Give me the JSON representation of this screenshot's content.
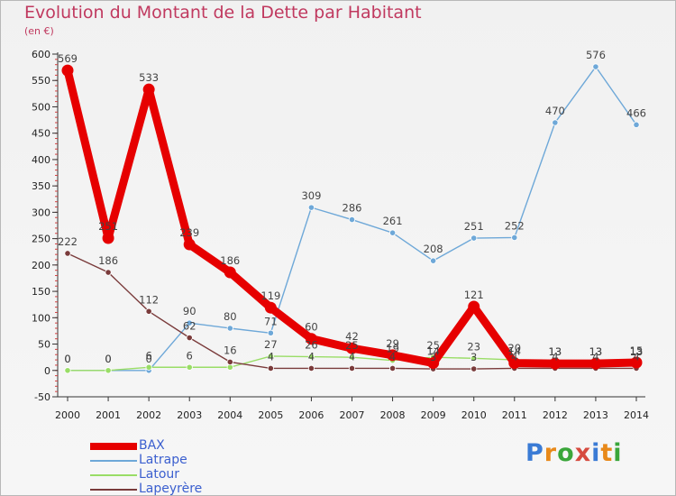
{
  "page": {
    "title": "Evolution du Montant de la Dette par Habitant",
    "subtitle": "(en €)"
  },
  "brand": {
    "letters": [
      "P",
      "r",
      "o",
      "x",
      "i",
      "t",
      "i"
    ],
    "colors": [
      "#3a7bd5",
      "#e8891a",
      "#3aa63a",
      "#d64b3f",
      "#3a7bd5",
      "#e8891a",
      "#3aa63a"
    ]
  },
  "chart_data": {
    "type": "line",
    "title": "Evolution du Montant de la Dette par Habitant",
    "subtitle": "(en €)",
    "xlabel": "",
    "ylabel": "",
    "x": [
      "2000",
      "2001",
      "2002",
      "2003",
      "2004",
      "2005",
      "2006",
      "2007",
      "2008",
      "2009",
      "2010",
      "2011",
      "2012",
      "2013",
      "2014"
    ],
    "ylim": [
      -50,
      600
    ],
    "yticks": [
      -50,
      0,
      50,
      100,
      150,
      200,
      250,
      300,
      350,
      400,
      450,
      500,
      550,
      600
    ],
    "grid": false,
    "legend_position": "bottom-left",
    "series": [
      {
        "name": "BAX",
        "color": "#e60000",
        "weight": "heavy",
        "values": [
          569,
          251,
          533,
          239,
          186,
          119,
          60,
          42,
          29,
          14,
          121,
          14,
          13,
          13,
          15
        ],
        "labels": [
          "569",
          "251",
          "533",
          "239",
          "186",
          "119",
          "60",
          "42",
          "29",
          "14",
          "121",
          "14",
          "13",
          "13",
          "15"
        ]
      },
      {
        "name": "Latrape",
        "color": "#6ea8d8",
        "weight": "thin",
        "values": [
          0,
          0,
          0,
          90,
          80,
          71,
          309,
          286,
          261,
          208,
          251,
          252,
          470,
          576,
          466
        ],
        "labels": [
          "0",
          "0",
          "0",
          "90",
          "80",
          "71",
          "309",
          "286",
          "261",
          "208",
          "251",
          "252",
          "470",
          "576",
          "466"
        ]
      },
      {
        "name": "Latour",
        "color": "#99dd66",
        "weight": "thin",
        "values": [
          0,
          0,
          6,
          6,
          6,
          27,
          26,
          25,
          19,
          25,
          23,
          20,
          13,
          13,
          13
        ],
        "labels": [
          "0",
          "0",
          "6",
          "6",
          "",
          "27",
          "26",
          "25",
          "19",
          "25",
          "23",
          "20",
          "13",
          "13",
          "13"
        ]
      },
      {
        "name": "Lapeyrère",
        "color": "#7a3b3b",
        "weight": "thin",
        "values": [
          222,
          186,
          112,
          62,
          16,
          4,
          4,
          4,
          4,
          3,
          3,
          4,
          4,
          4,
          4
        ],
        "labels": [
          "222",
          "186",
          "112",
          "62",
          "16",
          "4",
          "4",
          "4",
          "4",
          "3",
          "3",
          "4",
          "4",
          "4",
          "4"
        ]
      }
    ]
  }
}
